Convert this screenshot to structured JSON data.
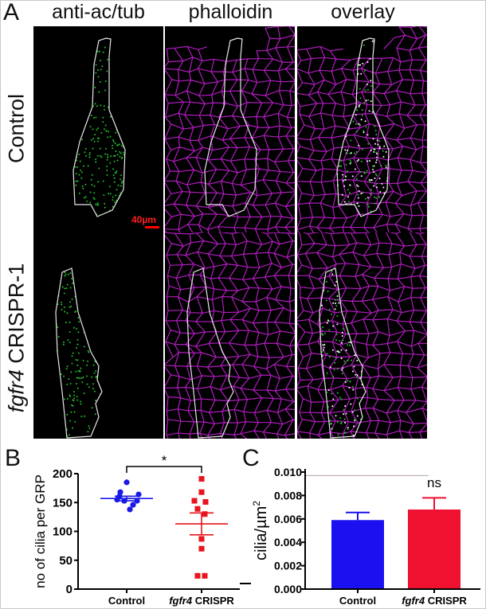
{
  "figure": {
    "panel_a": {
      "letter": "A",
      "columns": [
        "anti-ac/tub",
        "phalloidin",
        "overlay"
      ],
      "rows": [
        {
          "label": "Control"
        },
        {
          "label_italic": "fgfr4",
          "label_rest": " CRISPR-1"
        }
      ],
      "scale_bar": "40µm",
      "colors": {
        "cilia": "#22c02a",
        "actin": "#d020e0",
        "outline": "#e8e8e8",
        "scale_bar": "#ff0000"
      }
    },
    "panel_b": {
      "letter": "B"
    },
    "panel_c": {
      "letter": "C"
    }
  },
  "chart_data": [
    {
      "type": "scatter",
      "ylabel": "no of cilia per GRP",
      "ylim": [
        0,
        200
      ],
      "yticks": [
        "0",
        "50",
        "100",
        "150",
        "200"
      ],
      "categories": [
        {
          "italic": "",
          "text": "Control"
        },
        {
          "italic": "fgfr4",
          "text": " CRISPR"
        }
      ],
      "series": [
        {
          "color": "#1a1ae6",
          "marker": "circle",
          "values": [
            185,
            168,
            164,
            161,
            155,
            153,
            153,
            153,
            146,
            138
          ],
          "mean": 157,
          "sem": 4
        },
        {
          "color": "#e8141e",
          "marker": "square",
          "values": [
            191,
            168,
            153,
            151,
            139,
            130,
            87,
            70,
            23,
            23
          ],
          "mean": 113,
          "sem": 19
        }
      ],
      "significance": "*"
    },
    {
      "type": "bar",
      "ylabel": "cilia/µm",
      "ylabel_superscript": "2",
      "ylim": [
        0,
        0.01
      ],
      "yticks": [
        "0.000",
        "0.002",
        "0.004",
        "0.006",
        "0.008",
        "0.010"
      ],
      "categories": [
        {
          "italic": "",
          "text": "Control"
        },
        {
          "italic": "fgfr4",
          "text": " CRISPR"
        }
      ],
      "values": [
        0.0059,
        0.0068
      ],
      "errors": [
        0.00065,
        0.001
      ],
      "colors": [
        "#1a10f0",
        "#f01030"
      ],
      "significance": "ns"
    }
  ]
}
